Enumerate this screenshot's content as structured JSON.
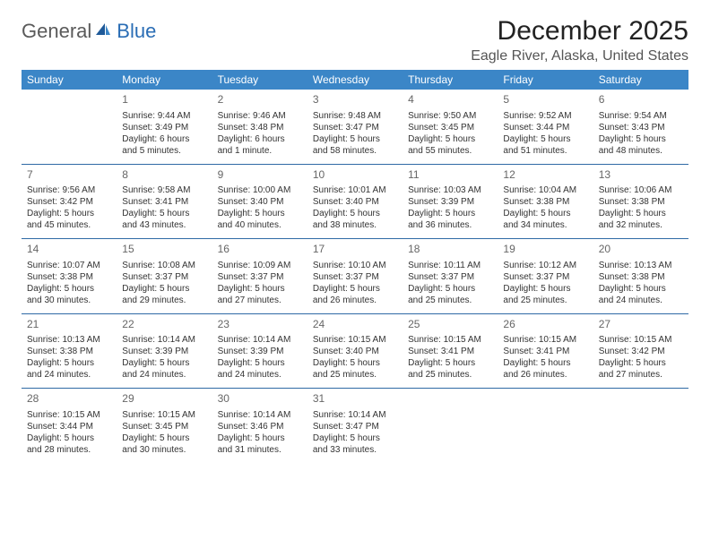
{
  "brand": {
    "general": "General",
    "blue": "Blue"
  },
  "title": "December 2025",
  "location": "Eagle River, Alaska, United States",
  "header_bg": "#3b86c7",
  "row_border": "#2f6aa5",
  "text_color": "#333333",
  "daynum_color": "#666666",
  "weekdays": [
    "Sunday",
    "Monday",
    "Tuesday",
    "Wednesday",
    "Thursday",
    "Friday",
    "Saturday"
  ],
  "cells": [
    [
      null,
      {
        "d": "1",
        "sr": "Sunrise: 9:44 AM",
        "ss": "Sunset: 3:49 PM",
        "dl": "Daylight: 6 hours and 5 minutes."
      },
      {
        "d": "2",
        "sr": "Sunrise: 9:46 AM",
        "ss": "Sunset: 3:48 PM",
        "dl": "Daylight: 6 hours and 1 minute."
      },
      {
        "d": "3",
        "sr": "Sunrise: 9:48 AM",
        "ss": "Sunset: 3:47 PM",
        "dl": "Daylight: 5 hours and 58 minutes."
      },
      {
        "d": "4",
        "sr": "Sunrise: 9:50 AM",
        "ss": "Sunset: 3:45 PM",
        "dl": "Daylight: 5 hours and 55 minutes."
      },
      {
        "d": "5",
        "sr": "Sunrise: 9:52 AM",
        "ss": "Sunset: 3:44 PM",
        "dl": "Daylight: 5 hours and 51 minutes."
      },
      {
        "d": "6",
        "sr": "Sunrise: 9:54 AM",
        "ss": "Sunset: 3:43 PM",
        "dl": "Daylight: 5 hours and 48 minutes."
      }
    ],
    [
      {
        "d": "7",
        "sr": "Sunrise: 9:56 AM",
        "ss": "Sunset: 3:42 PM",
        "dl": "Daylight: 5 hours and 45 minutes."
      },
      {
        "d": "8",
        "sr": "Sunrise: 9:58 AM",
        "ss": "Sunset: 3:41 PM",
        "dl": "Daylight: 5 hours and 43 minutes."
      },
      {
        "d": "9",
        "sr": "Sunrise: 10:00 AM",
        "ss": "Sunset: 3:40 PM",
        "dl": "Daylight: 5 hours and 40 minutes."
      },
      {
        "d": "10",
        "sr": "Sunrise: 10:01 AM",
        "ss": "Sunset: 3:40 PM",
        "dl": "Daylight: 5 hours and 38 minutes."
      },
      {
        "d": "11",
        "sr": "Sunrise: 10:03 AM",
        "ss": "Sunset: 3:39 PM",
        "dl": "Daylight: 5 hours and 36 minutes."
      },
      {
        "d": "12",
        "sr": "Sunrise: 10:04 AM",
        "ss": "Sunset: 3:38 PM",
        "dl": "Daylight: 5 hours and 34 minutes."
      },
      {
        "d": "13",
        "sr": "Sunrise: 10:06 AM",
        "ss": "Sunset: 3:38 PM",
        "dl": "Daylight: 5 hours and 32 minutes."
      }
    ],
    [
      {
        "d": "14",
        "sr": "Sunrise: 10:07 AM",
        "ss": "Sunset: 3:38 PM",
        "dl": "Daylight: 5 hours and 30 minutes."
      },
      {
        "d": "15",
        "sr": "Sunrise: 10:08 AM",
        "ss": "Sunset: 3:37 PM",
        "dl": "Daylight: 5 hours and 29 minutes."
      },
      {
        "d": "16",
        "sr": "Sunrise: 10:09 AM",
        "ss": "Sunset: 3:37 PM",
        "dl": "Daylight: 5 hours and 27 minutes."
      },
      {
        "d": "17",
        "sr": "Sunrise: 10:10 AM",
        "ss": "Sunset: 3:37 PM",
        "dl": "Daylight: 5 hours and 26 minutes."
      },
      {
        "d": "18",
        "sr": "Sunrise: 10:11 AM",
        "ss": "Sunset: 3:37 PM",
        "dl": "Daylight: 5 hours and 25 minutes."
      },
      {
        "d": "19",
        "sr": "Sunrise: 10:12 AM",
        "ss": "Sunset: 3:37 PM",
        "dl": "Daylight: 5 hours and 25 minutes."
      },
      {
        "d": "20",
        "sr": "Sunrise: 10:13 AM",
        "ss": "Sunset: 3:38 PM",
        "dl": "Daylight: 5 hours and 24 minutes."
      }
    ],
    [
      {
        "d": "21",
        "sr": "Sunrise: 10:13 AM",
        "ss": "Sunset: 3:38 PM",
        "dl": "Daylight: 5 hours and 24 minutes."
      },
      {
        "d": "22",
        "sr": "Sunrise: 10:14 AM",
        "ss": "Sunset: 3:39 PM",
        "dl": "Daylight: 5 hours and 24 minutes."
      },
      {
        "d": "23",
        "sr": "Sunrise: 10:14 AM",
        "ss": "Sunset: 3:39 PM",
        "dl": "Daylight: 5 hours and 24 minutes."
      },
      {
        "d": "24",
        "sr": "Sunrise: 10:15 AM",
        "ss": "Sunset: 3:40 PM",
        "dl": "Daylight: 5 hours and 25 minutes."
      },
      {
        "d": "25",
        "sr": "Sunrise: 10:15 AM",
        "ss": "Sunset: 3:41 PM",
        "dl": "Daylight: 5 hours and 25 minutes."
      },
      {
        "d": "26",
        "sr": "Sunrise: 10:15 AM",
        "ss": "Sunset: 3:41 PM",
        "dl": "Daylight: 5 hours and 26 minutes."
      },
      {
        "d": "27",
        "sr": "Sunrise: 10:15 AM",
        "ss": "Sunset: 3:42 PM",
        "dl": "Daylight: 5 hours and 27 minutes."
      }
    ],
    [
      {
        "d": "28",
        "sr": "Sunrise: 10:15 AM",
        "ss": "Sunset: 3:44 PM",
        "dl": "Daylight: 5 hours and 28 minutes."
      },
      {
        "d": "29",
        "sr": "Sunrise: 10:15 AM",
        "ss": "Sunset: 3:45 PM",
        "dl": "Daylight: 5 hours and 30 minutes."
      },
      {
        "d": "30",
        "sr": "Sunrise: 10:14 AM",
        "ss": "Sunset: 3:46 PM",
        "dl": "Daylight: 5 hours and 31 minutes."
      },
      {
        "d": "31",
        "sr": "Sunrise: 10:14 AM",
        "ss": "Sunset: 3:47 PM",
        "dl": "Daylight: 5 hours and 33 minutes."
      },
      null,
      null,
      null
    ]
  ]
}
